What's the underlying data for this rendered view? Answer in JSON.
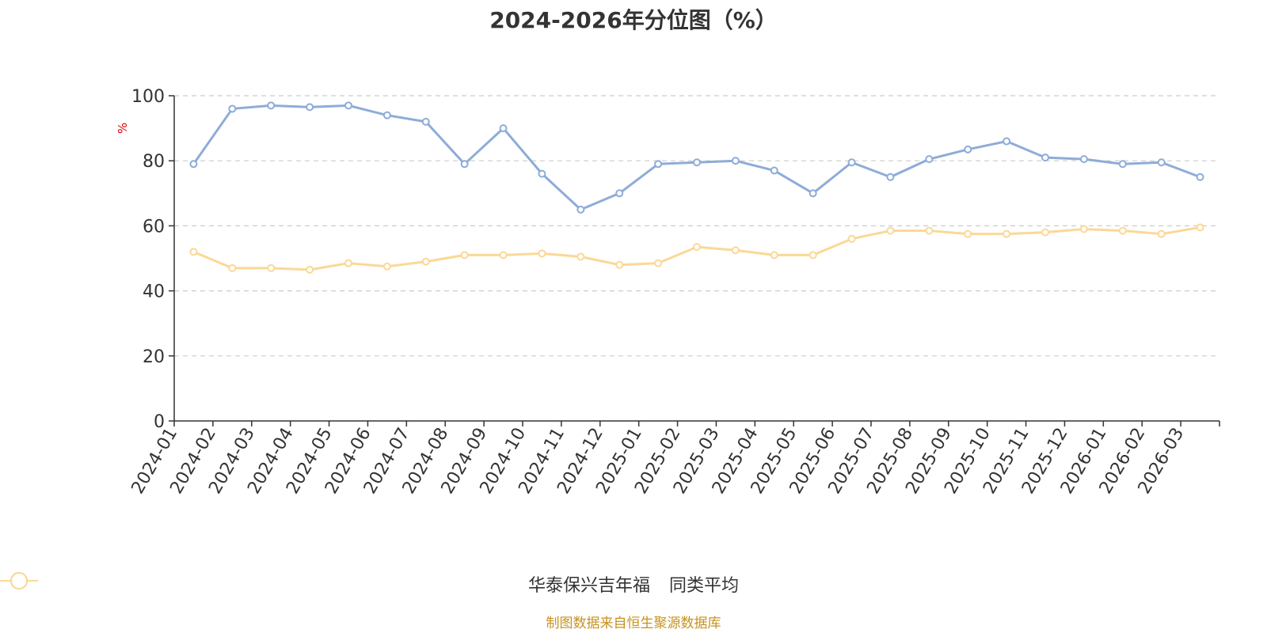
{
  "chart_data": {
    "type": "line",
    "title": "2024-2026年分位图（%）",
    "ylabel": "%",
    "ylim": [
      0,
      100
    ],
    "yticks": [
      0,
      20,
      40,
      60,
      80,
      100
    ],
    "grid": true,
    "legend_placement": "bottom",
    "categories": [
      "2024-01",
      "2024-02",
      "2024-03",
      "2024-04",
      "2024-05",
      "2024-06",
      "2024-07",
      "2024-08",
      "2024-09",
      "2024-10",
      "2024-11",
      "2024-12",
      "2025-01",
      "2025-02",
      "2025-03",
      "2025-04",
      "2025-05",
      "2025-06",
      "2025-07",
      "2025-08",
      "2025-09",
      "2025-10",
      "2025-11",
      "2025-12",
      "2026-01",
      "2026-02",
      "2026-03"
    ],
    "series": [
      {
        "name": "华泰保兴吉年福",
        "color": "#8eacd8",
        "values": [
          79,
          96,
          97,
          96.5,
          97,
          94,
          92,
          79,
          90,
          76,
          65,
          70,
          79,
          79.5,
          80,
          77,
          70,
          79.5,
          75,
          80.5,
          83.5,
          86,
          81,
          80.5,
          79,
          79.5,
          75
        ]
      },
      {
        "name": "同类平均",
        "color": "#fbd896",
        "values": [
          52,
          47,
          47,
          46.5,
          48.5,
          47.5,
          49,
          51,
          51,
          51.5,
          50.5,
          48,
          48.5,
          53.5,
          52.5,
          51,
          51,
          56,
          58.5,
          58.5,
          57.5,
          57.5,
          58,
          59,
          58.5,
          57.5,
          59.5
        ]
      }
    ]
  },
  "source": "制图数据来自恒生聚源数据库"
}
